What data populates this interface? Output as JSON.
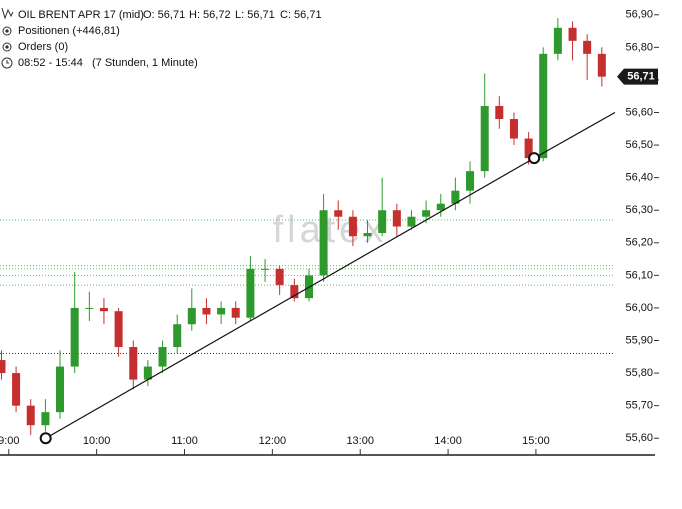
{
  "header": {
    "title": "OIL BRENT APR 17 (mid)",
    "open": "O: 56,71",
    "high": "H: 56,72",
    "low": "L: 56,71",
    "close": "C: 56,71",
    "positions": "Positionen (+446,81)",
    "orders": "Orders (0)",
    "timespan": "08:52 - 15:44",
    "duration": "(7 Stunden, 1 Minute)"
  },
  "chart_data": {
    "type": "candlestick",
    "watermark": "flatex",
    "x": [
      8.917,
      9.083,
      9.25,
      9.417,
      9.583,
      9.75,
      9.917,
      10.083,
      10.25,
      10.417,
      10.583,
      10.75,
      10.917,
      11.083,
      11.25,
      11.417,
      11.583,
      11.75,
      11.917,
      12.083,
      12.25,
      12.417,
      12.583,
      12.75,
      12.917,
      13.083,
      13.25,
      13.417,
      13.583,
      13.75,
      13.917,
      14.083,
      14.25,
      14.417,
      14.583,
      14.75,
      14.917,
      15.083,
      15.25,
      15.417,
      15.583,
      15.75
    ],
    "open": [
      55.84,
      55.8,
      55.7,
      55.64,
      55.68,
      55.82,
      56.0,
      56.0,
      55.99,
      55.88,
      55.78,
      55.82,
      55.88,
      55.95,
      56.0,
      55.98,
      56.0,
      55.97,
      56.12,
      56.12,
      56.07,
      56.03,
      56.1,
      56.3,
      56.28,
      56.22,
      56.23,
      56.3,
      56.25,
      56.28,
      56.3,
      56.32,
      56.36,
      56.42,
      56.62,
      56.58,
      56.52,
      56.46,
      56.78,
      56.86,
      56.82,
      56.78
    ],
    "high": [
      55.87,
      55.82,
      55.72,
      55.72,
      55.87,
      56.11,
      56.05,
      56.03,
      56.0,
      55.9,
      55.84,
      55.9,
      55.98,
      56.06,
      56.03,
      56.02,
      56.02,
      56.16,
      56.15,
      56.13,
      56.09,
      56.12,
      56.35,
      56.33,
      56.3,
      56.27,
      56.4,
      56.32,
      56.3,
      56.33,
      56.35,
      56.4,
      56.45,
      56.72,
      56.65,
      56.6,
      56.54,
      56.8,
      56.89,
      56.88,
      56.84,
      56.8
    ],
    "low": [
      55.78,
      55.68,
      55.61,
      55.62,
      55.66,
      55.8,
      55.96,
      55.95,
      55.85,
      55.75,
      55.76,
      55.8,
      55.86,
      55.93,
      55.95,
      55.95,
      55.95,
      55.96,
      56.08,
      56.04,
      56.02,
      56.02,
      56.08,
      56.24,
      56.19,
      56.2,
      56.22,
      56.22,
      56.24,
      56.26,
      56.28,
      56.3,
      56.32,
      56.4,
      56.55,
      56.5,
      56.44,
      56.45,
      56.76,
      56.76,
      56.7,
      56.68
    ],
    "close": [
      55.8,
      55.7,
      55.64,
      55.68,
      55.82,
      56.0,
      56.0,
      55.99,
      55.88,
      55.78,
      55.82,
      55.88,
      55.95,
      56.0,
      55.98,
      56.0,
      55.97,
      56.12,
      56.12,
      56.07,
      56.03,
      56.1,
      56.3,
      56.28,
      56.22,
      56.23,
      56.3,
      56.25,
      56.28,
      56.3,
      56.32,
      56.36,
      56.42,
      56.62,
      56.58,
      56.52,
      56.46,
      56.78,
      56.86,
      56.82,
      56.78,
      56.71
    ],
    "up_color": "#2e9a2e",
    "down_color": "#c62f2f",
    "xlim": [
      8.9,
      15.9
    ],
    "ylim": [
      55.57,
      56.93
    ],
    "xticks": [
      {
        "value": 9,
        "label": "9:00"
      },
      {
        "value": 10,
        "label": "10:00"
      },
      {
        "value": 11,
        "label": "11:00"
      },
      {
        "value": 12,
        "label": "12:00"
      },
      {
        "value": 13,
        "label": "13:00"
      },
      {
        "value": 14,
        "label": "14:00"
      },
      {
        "value": 15,
        "label": "15:00"
      }
    ],
    "yticks": [
      {
        "value": 55.6,
        "label": "55,60"
      },
      {
        "value": 55.7,
        "label": "55,70"
      },
      {
        "value": 55.8,
        "label": "55,80"
      },
      {
        "value": 55.9,
        "label": "55,90"
      },
      {
        "value": 56.0,
        "label": "56,00"
      },
      {
        "value": 56.1,
        "label": "56,10"
      },
      {
        "value": 56.2,
        "label": "56,20"
      },
      {
        "value": 56.3,
        "label": "56,30"
      },
      {
        "value": 56.4,
        "label": "56,40"
      },
      {
        "value": 56.5,
        "label": "56,50"
      },
      {
        "value": 56.6,
        "label": "56,60"
      },
      {
        "value": 56.7,
        "label": "56,70"
      },
      {
        "value": 56.8,
        "label": "56,80"
      },
      {
        "value": 56.9,
        "label": "56,90"
      }
    ],
    "last_price": {
      "value": 56.71,
      "label": "56,71"
    },
    "levels": [
      {
        "value": 56.27,
        "color": "#5fb85f"
      },
      {
        "value": 56.13,
        "color": "#5fb85f"
      },
      {
        "value": 56.12,
        "color": "#5fb85f"
      },
      {
        "value": 56.1,
        "color": "#5fb85f"
      },
      {
        "value": 56.07,
        "color": "#5fb85f"
      },
      {
        "value": 55.86,
        "color": "#333333"
      }
    ],
    "trendline": {
      "x": [
        9.42,
        14.98,
        15.9
      ],
      "y": [
        55.6,
        56.46,
        56.6
      ],
      "anchors": [
        0,
        1
      ]
    }
  }
}
